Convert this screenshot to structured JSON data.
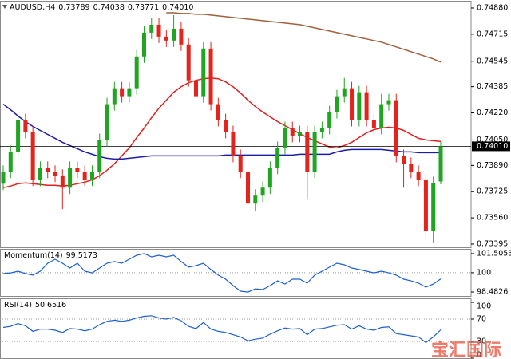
{
  "chart_data": {
    "type": "candlestick",
    "title": "AUDUSD,H4",
    "ohlc_labels": [
      "0.73789",
      "0.74038",
      "0.73771",
      "0.74010"
    ],
    "up_color": "#1fa51f",
    "down_color": "#e3231c",
    "open": [
      0.73775,
      0.7385,
      0.73975,
      0.74175,
      0.741,
      0.738,
      0.73875,
      0.7385,
      0.73825,
      0.7375,
      0.73875,
      0.7385,
      0.738,
      0.7385,
      0.7405,
      0.74275,
      0.74375,
      0.74325,
      0.74375,
      0.74575,
      0.74725,
      0.74775,
      0.747,
      0.74675,
      0.7475,
      0.7465,
      0.74425,
      0.74325,
      0.74625,
      0.74275,
      0.74175,
      0.741,
      0.7395,
      0.7385,
      0.7365,
      0.737,
      0.7375,
      0.73875,
      0.74,
      0.74125,
      0.74075,
      0.741,
      0.7385,
      0.741,
      0.74125,
      0.74225,
      0.74325,
      0.74375,
      0.74175,
      0.7435,
      0.74175,
      0.74125,
      0.74275,
      0.743,
      0.7395,
      0.739,
      0.7385,
      0.738,
      0.73475,
      0.73789
    ],
    "high": [
      0.7389,
      0.74015,
      0.74215,
      0.74215,
      0.7414,
      0.73915,
      0.73915,
      0.7389,
      0.73865,
      0.73915,
      0.73915,
      0.7389,
      0.7389,
      0.7409,
      0.74315,
      0.74415,
      0.74415,
      0.74415,
      0.74615,
      0.74765,
      0.74815,
      0.74815,
      0.7474,
      0.74835,
      0.7479,
      0.7469,
      0.74465,
      0.74665,
      0.74665,
      0.74315,
      0.74215,
      0.7414,
      0.7399,
      0.7389,
      0.7374,
      0.7379,
      0.73915,
      0.7404,
      0.74165,
      0.74165,
      0.7414,
      0.7414,
      0.7414,
      0.74165,
      0.74265,
      0.74365,
      0.7444,
      0.74415,
      0.7439,
      0.7439,
      0.74215,
      0.7434,
      0.7434,
      0.7434,
      0.7399,
      0.7394,
      0.7389,
      0.7384,
      0.7382,
      0.74038
    ],
    "low": [
      0.73735,
      0.7381,
      0.73935,
      0.7406,
      0.7376,
      0.7376,
      0.7381,
      0.73785,
      0.73615,
      0.7371,
      0.7381,
      0.7376,
      0.7376,
      0.7381,
      0.7401,
      0.74235,
      0.74285,
      0.74285,
      0.74335,
      0.74535,
      0.74685,
      0.7466,
      0.74635,
      0.74635,
      0.7461,
      0.74385,
      0.74285,
      0.74285,
      0.74235,
      0.74135,
      0.7406,
      0.7391,
      0.7381,
      0.7361,
      0.736,
      0.7366,
      0.7371,
      0.73835,
      0.7396,
      0.74035,
      0.74035,
      0.73675,
      0.7381,
      0.7406,
      0.74085,
      0.74185,
      0.74285,
      0.74135,
      0.74135,
      0.74135,
      0.74085,
      0.74085,
      0.74235,
      0.7391,
      0.7375,
      0.7381,
      0.7376,
      0.73435,
      0.734,
      0.73771
    ],
    "close": [
      0.7385,
      0.73975,
      0.74175,
      0.741,
      0.738,
      0.73875,
      0.7385,
      0.73825,
      0.7375,
      0.73875,
      0.7385,
      0.738,
      0.7385,
      0.7405,
      0.74275,
      0.74375,
      0.74325,
      0.74375,
      0.74575,
      0.74725,
      0.74775,
      0.747,
      0.74675,
      0.7475,
      0.7465,
      0.74425,
      0.74325,
      0.74625,
      0.74275,
      0.74175,
      0.741,
      0.7395,
      0.7385,
      0.7365,
      0.737,
      0.7375,
      0.73875,
      0.74,
      0.74125,
      0.74075,
      0.741,
      0.7385,
      0.741,
      0.74125,
      0.74225,
      0.74325,
      0.74375,
      0.74175,
      0.7435,
      0.74175,
      0.74125,
      0.74275,
      0.743,
      0.7395,
      0.739,
      0.7385,
      0.738,
      0.73475,
      0.7378,
      0.7401
    ],
    "lines": [
      {
        "color": "#e0201c",
        "values": [
          0.7375,
          0.7376,
          0.73775,
          0.7378,
          0.73775,
          0.7377,
          0.73765,
          0.73765,
          0.7376,
          0.73765,
          0.73775,
          0.73785,
          0.738,
          0.73825,
          0.7386,
          0.739,
          0.7395,
          0.74,
          0.74065,
          0.74125,
          0.7419,
          0.7425,
          0.743,
          0.7435,
          0.74385,
          0.7441,
          0.74425,
          0.74435,
          0.7444,
          0.74435,
          0.74415,
          0.74385,
          0.74345,
          0.743,
          0.7426,
          0.74225,
          0.74195,
          0.74165,
          0.7414,
          0.74115,
          0.7409,
          0.74065,
          0.74045,
          0.74025,
          0.74005,
          0.74,
          0.74015,
          0.74035,
          0.74065,
          0.74095,
          0.74115,
          0.74125,
          0.7413,
          0.74125,
          0.7411,
          0.74085,
          0.7406,
          0.7405,
          0.74045,
          0.7404
        ]
      },
      {
        "color": "#1c1ca8",
        "values": [
          0.74275,
          0.7424,
          0.742,
          0.74165,
          0.74135,
          0.7411,
          0.74085,
          0.7406,
          0.74035,
          0.74015,
          0.73995,
          0.73975,
          0.7396,
          0.73945,
          0.73935,
          0.7393,
          0.7393,
          0.73935,
          0.7394,
          0.73945,
          0.7395,
          0.7395,
          0.7395,
          0.7395,
          0.7395,
          0.7395,
          0.7395,
          0.7395,
          0.7395,
          0.7395,
          0.73955,
          0.73955,
          0.73955,
          0.73955,
          0.73955,
          0.73955,
          0.73955,
          0.73955,
          0.73955,
          0.73955,
          0.7396,
          0.7396,
          0.7396,
          0.7396,
          0.7396,
          0.73975,
          0.73985,
          0.7399,
          0.7399,
          0.7399,
          0.7399,
          0.7399,
          0.73985,
          0.7398,
          0.73975,
          0.73975,
          0.7397,
          0.7397,
          0.7397,
          0.7397
        ]
      },
      {
        "color": "#a0603c",
        "values": [
          null,
          null,
          null,
          null,
          null,
          null,
          null,
          null,
          null,
          null,
          null,
          null,
          null,
          null,
          null,
          null,
          null,
          null,
          null,
          null,
          null,
          null,
          0.7485,
          0.7485,
          0.74845,
          0.74845,
          0.7484,
          0.7484,
          0.74835,
          0.7483,
          0.74825,
          0.7482,
          0.74815,
          0.7481,
          0.74805,
          0.748,
          0.74795,
          0.7479,
          0.74785,
          0.7478,
          0.74775,
          0.74765,
          0.74755,
          0.74745,
          0.74735,
          0.74725,
          0.74715,
          0.74705,
          0.74695,
          0.74685,
          0.74675,
          0.74665,
          0.7465,
          0.74635,
          0.7462,
          0.74605,
          0.7459,
          0.74575,
          0.7456,
          0.7454
        ]
      }
    ],
    "ylim": [
      0.73375,
      0.74925
    ],
    "yticks": [
      {
        "value": 0.7488,
        "label": "0.74880"
      },
      {
        "value": 0.74715,
        "label": "0.74715"
      },
      {
        "value": 0.74545,
        "label": "0.74545"
      },
      {
        "value": 0.74385,
        "label": "0.74385"
      },
      {
        "value": 0.7422,
        "label": "0.74220"
      },
      {
        "value": 0.7405,
        "label": "0.74050"
      },
      {
        "value": 0.7389,
        "label": "0.73890"
      },
      {
        "value": 0.73725,
        "label": "0.73725"
      },
      {
        "value": 0.7356,
        "label": "0.73560"
      },
      {
        "value": 0.73395,
        "label": "0.73395"
      }
    ],
    "price_line": {
      "value": 0.7401,
      "label": "0.74010"
    },
    "indicators": [
      {
        "title": "Momentum(14)",
        "color": "#1c5fd0",
        "ylim": [
          98.17,
          101.88
        ],
        "yticks": [
          101.5053,
          100,
          98.4826
        ],
        "levels": [
          100
        ],
        "values": [
          99.93,
          99.99,
          100.12,
          99.93,
          99.81,
          100.12,
          100.75,
          101.06,
          100.75,
          100.37,
          100.75,
          100.12,
          99.99,
          100.37,
          100.75,
          100.88,
          100.75,
          101.06,
          101.38,
          101.51,
          101.25,
          101.38,
          101.25,
          101.38,
          100.88,
          100.44,
          100.56,
          100.75,
          100.25,
          99.81,
          99.49,
          98.99,
          98.55,
          98.48,
          98.73,
          98.67,
          98.99,
          99.36,
          99.11,
          99.49,
          99.49,
          99.18,
          99.81,
          100.12,
          100.44,
          100.75,
          100.62,
          100.37,
          100.25,
          100.12,
          99.99,
          100.12,
          99.99,
          99.81,
          99.49,
          99.36,
          99.18,
          98.86,
          99.11,
          99.5173
        ]
      },
      {
        "title": "RSI(14)",
        "color": "#1c5fd0",
        "ylim": [
          0,
          100
        ],
        "yticks": [
          100,
          70,
          30,
          0
        ],
        "levels": [
          70,
          30
        ],
        "values": [
          55,
          57,
          62,
          58,
          48,
          52,
          52,
          50,
          46,
          53,
          52,
          49,
          52,
          60,
          66,
          68,
          66,
          68,
          72,
          75,
          76,
          72,
          70,
          73,
          67,
          57,
          53,
          64,
          52,
          48,
          46,
          42,
          38,
          31,
          34,
          36,
          43,
          49,
          54,
          52,
          53,
          42,
          52,
          53,
          56,
          59,
          60,
          52,
          58,
          52,
          50,
          55,
          56,
          44,
          42,
          40,
          38,
          28,
          38,
          50.6516
        ]
      }
    ],
    "watermark": "宝汇国际"
  }
}
